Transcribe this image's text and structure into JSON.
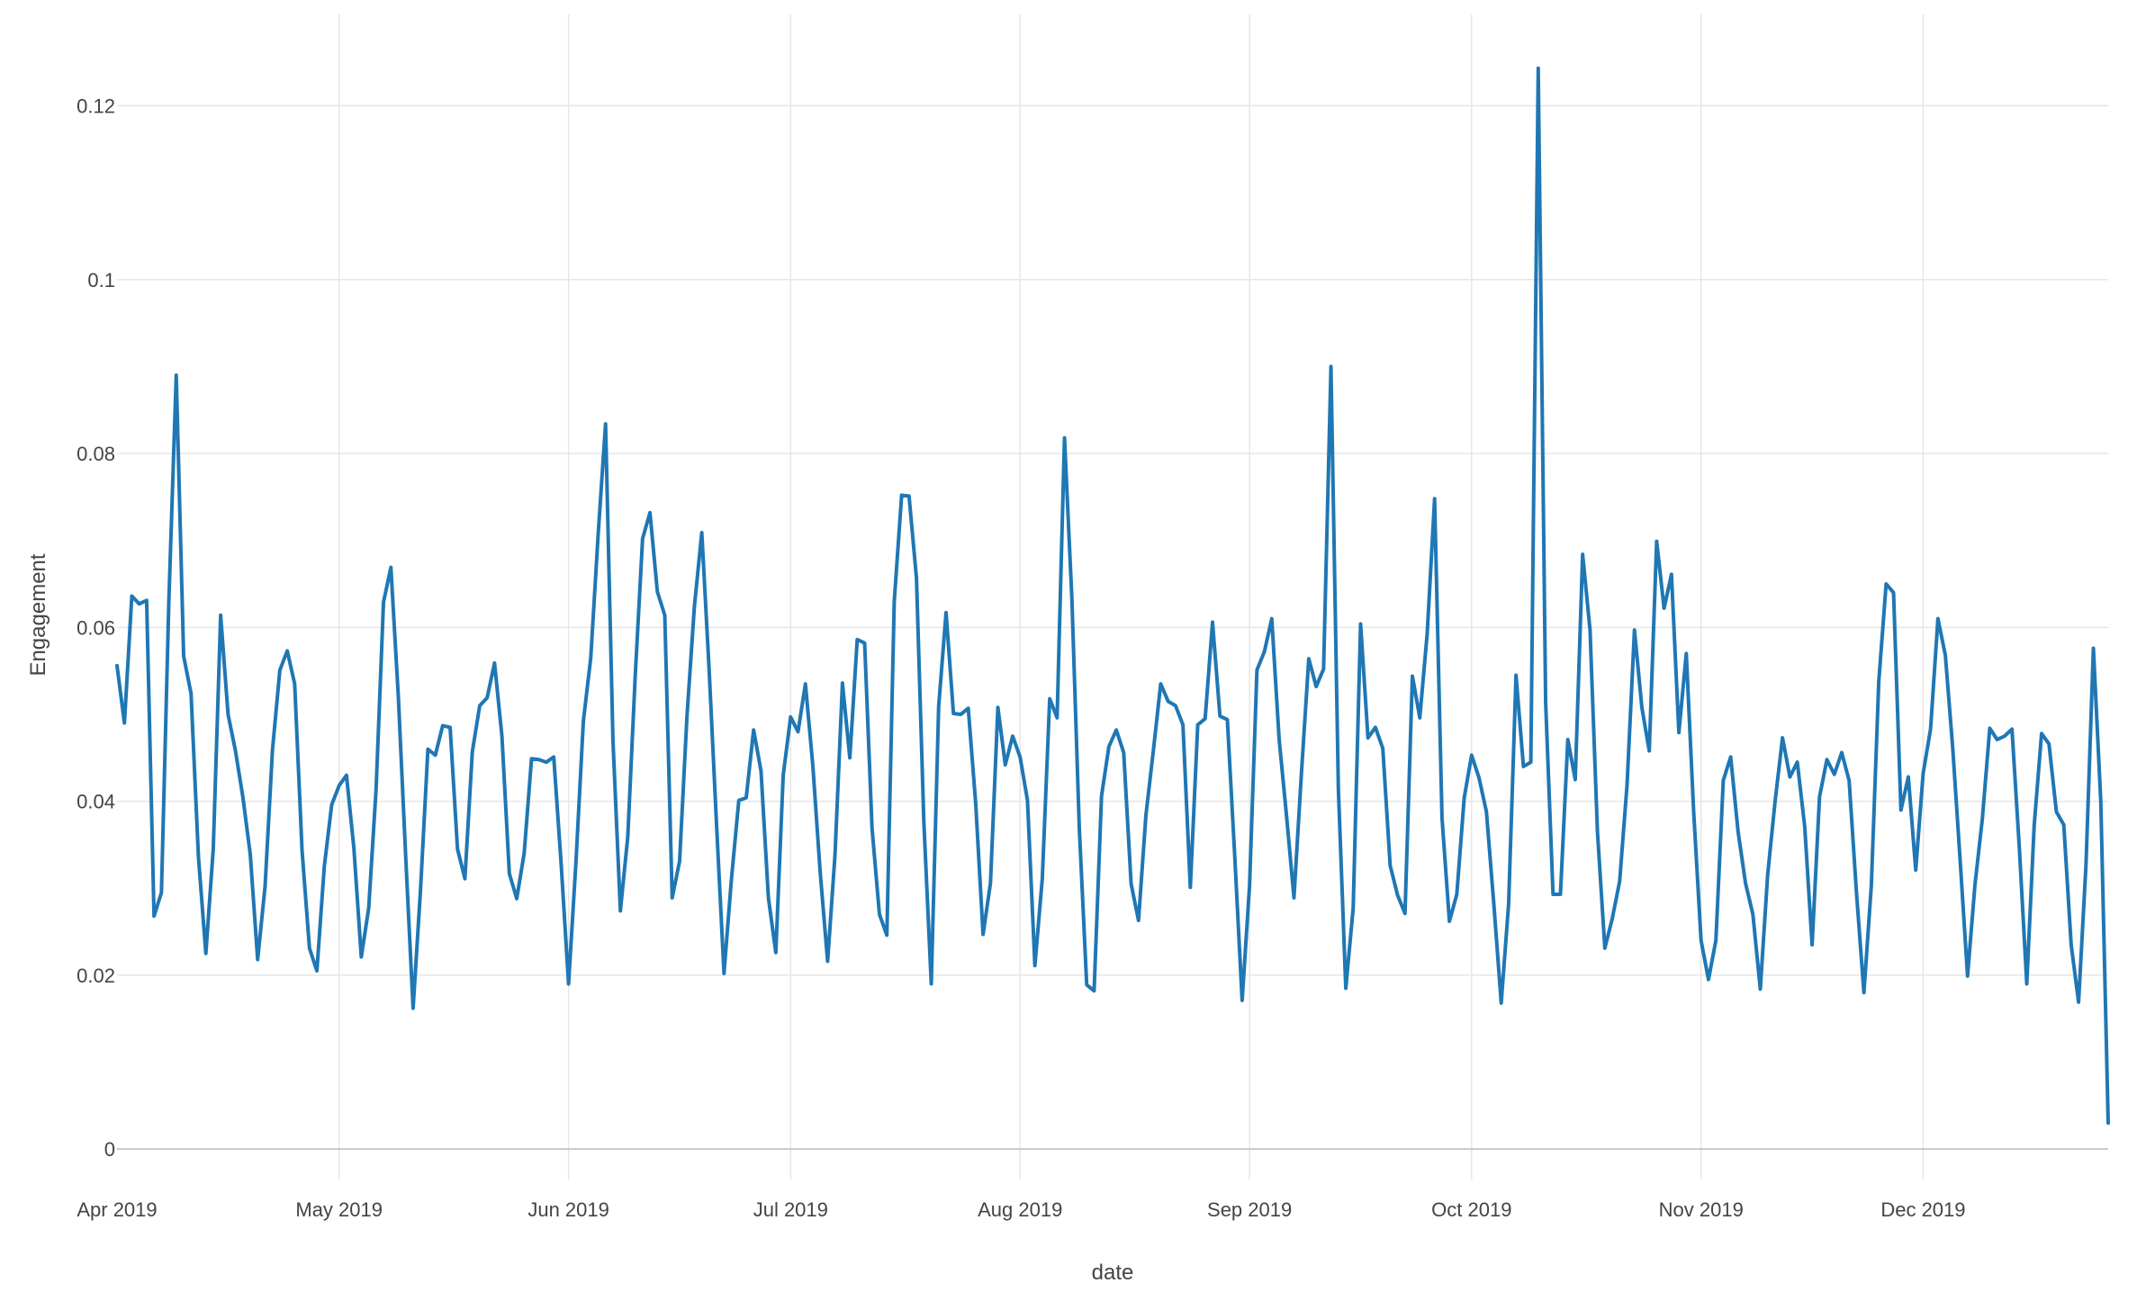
{
  "chart_data": {
    "type": "line",
    "xlabel": "date",
    "ylabel": "Engagement",
    "x_range": [
      "2019-04-01",
      "2019-12-26"
    ],
    "ylim": [
      -0.0035,
      0.1305
    ],
    "y_ticks": [
      0,
      0.02,
      0.04,
      0.06,
      0.08,
      0.1,
      0.12
    ],
    "y_tick_labels": [
      "0",
      "0.02",
      "0.04",
      "0.06",
      "0.08",
      "0.1",
      "0.12"
    ],
    "x_ticks": [
      "2019-04-01",
      "2019-05-01",
      "2019-06-01",
      "2019-07-01",
      "2019-08-01",
      "2019-09-01",
      "2019-10-01",
      "2019-11-01",
      "2019-12-01"
    ],
    "x_tick_labels": [
      "Apr 2019",
      "May 2019",
      "Jun 2019",
      "Jul 2019",
      "Aug 2019",
      "Sep 2019",
      "Oct 2019",
      "Nov 2019",
      "Dec 2019"
    ],
    "grid": true,
    "legend": "none",
    "series": [
      {
        "color": "#1f77b4",
        "start_date": "2019-04-01",
        "step_days": 1,
        "values": [
          0.0556,
          0.049,
          0.0636,
          0.0627,
          0.0631,
          0.0268,
          0.0295,
          0.063,
          0.089,
          0.0567,
          0.0524,
          0.0336,
          0.0225,
          0.0345,
          0.0614,
          0.05,
          0.0458,
          0.0405,
          0.0339,
          0.0218,
          0.0302,
          0.0459,
          0.0551,
          0.0573,
          0.0535,
          0.0343,
          0.0231,
          0.0205,
          0.0325,
          0.0396,
          0.0418,
          0.043,
          0.0346,
          0.0221,
          0.0277,
          0.0414,
          0.0629,
          0.0669,
          0.0521,
          0.0336,
          0.0162,
          0.0298,
          0.046,
          0.0453,
          0.0487,
          0.0485,
          0.0345,
          0.0311,
          0.0457,
          0.051,
          0.0519,
          0.0559,
          0.0475,
          0.0317,
          0.0288,
          0.034,
          0.0449,
          0.0448,
          0.0445,
          0.0451,
          0.0328,
          0.019,
          0.033,
          0.0492,
          0.0565,
          0.0707,
          0.0834,
          0.047,
          0.0274,
          0.0359,
          0.0543,
          0.0702,
          0.0732,
          0.0641,
          0.0614,
          0.0289,
          0.0331,
          0.0498,
          0.0624,
          0.0709,
          0.055,
          0.0372,
          0.0202,
          0.031,
          0.0401,
          0.0404,
          0.0482,
          0.0435,
          0.0289,
          0.0226,
          0.043,
          0.0497,
          0.048,
          0.0535,
          0.0441,
          0.0318,
          0.0216,
          0.0339,
          0.0536,
          0.045,
          0.0586,
          0.0582,
          0.0369,
          0.027,
          0.0246,
          0.063,
          0.0752,
          0.0751,
          0.0657,
          0.0376,
          0.019,
          0.0509,
          0.0617,
          0.0501,
          0.05,
          0.0507,
          0.0398,
          0.0247,
          0.0306,
          0.0508,
          0.0442,
          0.0475,
          0.0451,
          0.0401,
          0.0211,
          0.0311,
          0.0518,
          0.0496,
          0.0818,
          0.0633,
          0.0369,
          0.0189,
          0.0182,
          0.0406,
          0.0463,
          0.0482,
          0.0456,
          0.0305,
          0.0263,
          0.0384,
          0.0458,
          0.0535,
          0.0515,
          0.051,
          0.0488,
          0.0301,
          0.0488,
          0.0495,
          0.0606,
          0.0498,
          0.0494,
          0.0337,
          0.0171,
          0.0303,
          0.0551,
          0.0572,
          0.061,
          0.0471,
          0.0383,
          0.0289,
          0.0431,
          0.0564,
          0.0532,
          0.0552,
          0.09,
          0.0414,
          0.0185,
          0.0277,
          0.0604,
          0.0473,
          0.0485,
          0.0461,
          0.0326,
          0.0292,
          0.0271,
          0.0544,
          0.0496,
          0.0593,
          0.0748,
          0.0381,
          0.0262,
          0.0293,
          0.0404,
          0.0453,
          0.0427,
          0.0388,
          0.0282,
          0.0168,
          0.0282,
          0.0545,
          0.044,
          0.0445,
          0.1243,
          0.0514,
          0.0293,
          0.0293,
          0.0471,
          0.0425,
          0.0684,
          0.0597,
          0.0365,
          0.0231,
          0.0265,
          0.0308,
          0.0419,
          0.0597,
          0.0508,
          0.0458,
          0.0699,
          0.0622,
          0.0661,
          0.0479,
          0.057,
          0.0388,
          0.024,
          0.0195,
          0.024,
          0.0424,
          0.0451,
          0.0365,
          0.0306,
          0.027,
          0.0184,
          0.0316,
          0.04,
          0.0473,
          0.0428,
          0.0445,
          0.0371,
          0.0235,
          0.0405,
          0.0448,
          0.0431,
          0.0456,
          0.0424,
          0.0294,
          0.018,
          0.0303,
          0.0537,
          0.065,
          0.064,
          0.039,
          0.0428,
          0.0321,
          0.0432,
          0.0483,
          0.061,
          0.0568,
          0.0461,
          0.0332,
          0.0199,
          0.0304,
          0.038,
          0.0484,
          0.0471,
          0.0475,
          0.0483,
          0.0346,
          0.019,
          0.0372,
          0.0478,
          0.0466,
          0.0388,
          0.0373,
          0.0235,
          0.0169,
          0.0327,
          0.0576,
          0.04,
          0.003
        ]
      }
    ]
  }
}
